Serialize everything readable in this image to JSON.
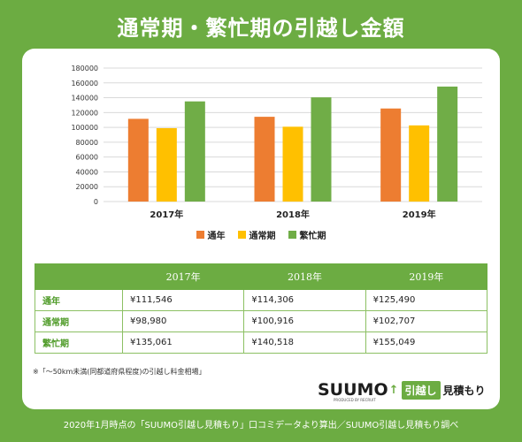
{
  "title": "通常期・繁忙期の引越し金額",
  "chart_data": {
    "type": "bar",
    "categories": [
      "2017年",
      "2018年",
      "2019年"
    ],
    "series": [
      {
        "name": "通年",
        "color": "#ed7d31",
        "values": [
          111546,
          114306,
          125490
        ]
      },
      {
        "name": "通常期",
        "color": "#ffc000",
        "values": [
          98980,
          100916,
          102707
        ]
      },
      {
        "name": "繁忙期",
        "color": "#70ad47",
        "values": [
          135061,
          140518,
          155049
        ]
      }
    ],
    "ylim": [
      0,
      180000
    ],
    "yticks": [
      "0",
      "20000",
      "40000",
      "60000",
      "80000",
      "100000",
      "120000",
      "140000",
      "160000",
      "180000"
    ],
    "grid": true,
    "legend": "bottom"
  },
  "table": {
    "headers": [
      "",
      "2017年",
      "2018年",
      "2019年"
    ],
    "rows": [
      {
        "label": "通年",
        "cells": [
          "¥111,546",
          "¥114,306",
          "¥125,490"
        ]
      },
      {
        "label": "通常期",
        "cells": [
          "¥98,980",
          "¥100,916",
          "¥102,707"
        ]
      },
      {
        "label": "繁忙期",
        "cells": [
          "¥135,061",
          "¥140,518",
          "¥155,049"
        ]
      }
    ]
  },
  "note": "※「～50km未満(同都道府県程度)の引越し料金相場」",
  "logo": {
    "brand": "SUUMO",
    "sub": "PRODUCED BY RECRUIT",
    "box_text": "引越し",
    "tail_text": "見積もり"
  },
  "footer": "2020年1月時点の「SUUMO引越し見積もり」口コミデータより算出／SUUMO引越し見積もり調べ"
}
